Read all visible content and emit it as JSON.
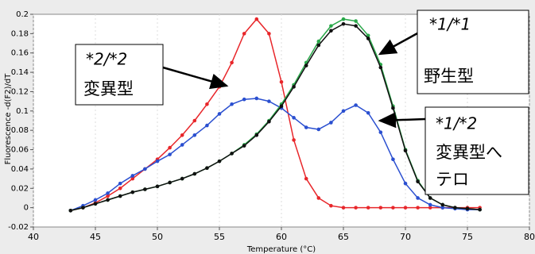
{
  "chart_data": {
    "type": "line",
    "x_label": "Temperature (°C)",
    "y_label": "Fluorescence -d(F2)/dT",
    "x": [
      43,
      44,
      45,
      46,
      47,
      48,
      49,
      50,
      51,
      52,
      53,
      54,
      55,
      56,
      57,
      58,
      59,
      60,
      61,
      62,
      63,
      64,
      65,
      66,
      67,
      68,
      69,
      70,
      71,
      72,
      73,
      74,
      75,
      76
    ],
    "series": [
      {
        "name": null,
        "color": "#e8262a",
        "values": [
          -0.003,
          0.0,
          0.005,
          0.012,
          0.02,
          0.03,
          0.04,
          0.05,
          0.062,
          0.075,
          0.09,
          0.107,
          0.125,
          0.15,
          0.18,
          0.195,
          0.18,
          0.13,
          0.07,
          0.03,
          0.01,
          0.002,
          0.0,
          0.0,
          0.0,
          0.0,
          0.0,
          0.0,
          0.0,
          0.0,
          0.0,
          0.0,
          0.0,
          0.0
        ]
      },
      {
        "name": null,
        "color": "#2a4fd0",
        "values": [
          -0.003,
          0.002,
          0.008,
          0.015,
          0.025,
          0.033,
          0.04,
          0.048,
          0.055,
          0.065,
          0.075,
          0.085,
          0.097,
          0.107,
          0.112,
          0.113,
          0.11,
          0.103,
          0.093,
          0.083,
          0.081,
          0.088,
          0.1,
          0.106,
          0.098,
          0.078,
          0.05,
          0.025,
          0.01,
          0.003,
          0.0,
          -0.001,
          -0.002,
          -0.002
        ]
      },
      {
        "name": null,
        "color": "#2aa84a",
        "values": [
          -0.003,
          0.0,
          0.004,
          0.008,
          0.012,
          0.016,
          0.019,
          0.022,
          0.026,
          0.03,
          0.035,
          0.041,
          0.048,
          0.056,
          0.065,
          0.076,
          0.09,
          0.107,
          0.127,
          0.15,
          0.172,
          0.188,
          0.195,
          0.193,
          0.178,
          0.148,
          0.105,
          0.06,
          0.028,
          0.01,
          0.003,
          0.0,
          -0.001,
          -0.002
        ]
      },
      {
        "name": null,
        "color": "#111111",
        "values": [
          -0.003,
          0.0,
          0.004,
          0.008,
          0.012,
          0.016,
          0.019,
          0.022,
          0.026,
          0.03,
          0.035,
          0.041,
          0.048,
          0.056,
          0.064,
          0.075,
          0.089,
          0.105,
          0.125,
          0.147,
          0.168,
          0.183,
          0.19,
          0.188,
          0.175,
          0.145,
          0.103,
          0.059,
          0.027,
          0.01,
          0.003,
          0.0,
          -0.001,
          -0.002
        ]
      }
    ],
    "xlim": [
      40,
      80
    ],
    "xticks": [
      40,
      45,
      50,
      55,
      60,
      65,
      70,
      75,
      80
    ],
    "ylim": [
      -0.02,
      0.2
    ],
    "yticks": [
      -0.02,
      0,
      0.02,
      0.04,
      0.06,
      0.08,
      0.1,
      0.12,
      0.14,
      0.16,
      0.18,
      0.2
    ],
    "grid": true,
    "annotations": [
      {
        "genotype": "*2/*2",
        "lines": [
          "変異型"
        ]
      },
      {
        "genotype": "*1/*1",
        "lines": [
          "野生型"
        ]
      },
      {
        "genotype": "*1/*2",
        "lines": [
          "変異型へ",
          "テロ"
        ]
      }
    ]
  }
}
